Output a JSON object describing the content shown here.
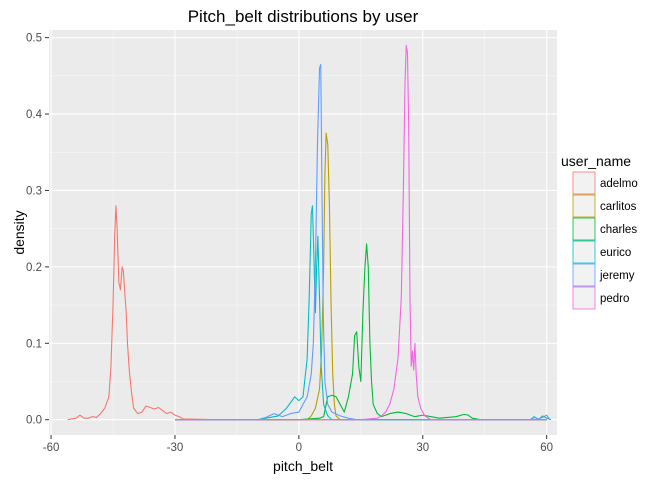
{
  "chart_data": {
    "type": "line",
    "title": "Pitch_belt distributions by user",
    "xlabel": "pitch_belt",
    "ylabel": "density",
    "xlim": [
      -60.5,
      62.5
    ],
    "ylim": [
      -0.02,
      0.51
    ],
    "x_ticks": [
      -60,
      -30,
      0,
      30,
      60
    ],
    "x_tick_labels": [
      "-60",
      "-30",
      "0",
      "30",
      "60"
    ],
    "y_ticks": [
      0.0,
      0.1,
      0.2,
      0.3,
      0.4,
      0.5
    ],
    "y_tick_labels": [
      "0.0",
      "0.1",
      "0.2",
      "0.3",
      "0.4",
      "0.5"
    ],
    "grid": true,
    "legend": {
      "title": "user_name",
      "placement": "right"
    },
    "series": [
      {
        "name": "adelmo",
        "color": "#F8766D",
        "points": [
          [
            -56,
            0
          ],
          [
            -54,
            0.002
          ],
          [
            -53,
            0.006
          ],
          [
            -52,
            0.002
          ],
          [
            -51,
            0.002
          ],
          [
            -50,
            0.004
          ],
          [
            -49,
            0.003
          ],
          [
            -48,
            0.008
          ],
          [
            -47,
            0.015
          ],
          [
            -46,
            0.03
          ],
          [
            -45.5,
            0.07
          ],
          [
            -45,
            0.15
          ],
          [
            -44.6,
            0.24
          ],
          [
            -44.3,
            0.28
          ],
          [
            -44,
            0.25
          ],
          [
            -43.6,
            0.18
          ],
          [
            -43.2,
            0.17
          ],
          [
            -42.8,
            0.2
          ],
          [
            -42.5,
            0.195
          ],
          [
            -42.2,
            0.17
          ],
          [
            -41.8,
            0.14
          ],
          [
            -41.5,
            0.1
          ],
          [
            -41,
            0.06
          ],
          [
            -40.5,
            0.035
          ],
          [
            -40,
            0.015
          ],
          [
            -39,
            0.008
          ],
          [
            -38,
            0.01
          ],
          [
            -37,
            0.018
          ],
          [
            -36,
            0.016
          ],
          [
            -35,
            0.014
          ],
          [
            -34,
            0.016
          ],
          [
            -33,
            0.012
          ],
          [
            -32,
            0.008
          ],
          [
            -31,
            0.01
          ],
          [
            -30,
            0.006
          ],
          [
            -29,
            0.004
          ],
          [
            -28,
            0.001
          ],
          [
            -20,
            0
          ],
          [
            0,
            0
          ],
          [
            30,
            0
          ],
          [
            60,
            0
          ]
        ]
      },
      {
        "name": "carlitos",
        "color": "#B79F00",
        "points": [
          [
            -30,
            0
          ],
          [
            0,
            0
          ],
          [
            2,
            0
          ],
          [
            3,
            0.005
          ],
          [
            4,
            0.015
          ],
          [
            5,
            0.04
          ],
          [
            5.5,
            0.09
          ],
          [
            6,
            0.2
          ],
          [
            6.3,
            0.32
          ],
          [
            6.6,
            0.375
          ],
          [
            7,
            0.36
          ],
          [
            7.4,
            0.28
          ],
          [
            7.8,
            0.15
          ],
          [
            8.2,
            0.06
          ],
          [
            8.6,
            0.02
          ],
          [
            9,
            0.005
          ],
          [
            10,
            0
          ],
          [
            30,
            0
          ],
          [
            60,
            0
          ]
        ]
      },
      {
        "name": "charles",
        "color": "#00BA38",
        "points": [
          [
            -30,
            0
          ],
          [
            -10,
            0
          ],
          [
            0,
            0
          ],
          [
            5,
            0.002
          ],
          [
            6,
            0.004
          ],
          [
            7,
            0.03
          ],
          [
            8,
            0.032
          ],
          [
            9,
            0.03
          ],
          [
            10,
            0.02
          ],
          [
            11,
            0.01
          ],
          [
            12,
            0.03
          ],
          [
            13,
            0.06
          ],
          [
            13.5,
            0.11
          ],
          [
            14,
            0.115
          ],
          [
            14.5,
            0.07
          ],
          [
            15,
            0.05
          ],
          [
            15.5,
            0.14
          ],
          [
            16,
            0.2
          ],
          [
            16.4,
            0.23
          ],
          [
            16.8,
            0.2
          ],
          [
            17.2,
            0.1
          ],
          [
            17.6,
            0.05
          ],
          [
            18,
            0.02
          ],
          [
            19,
            0.008
          ],
          [
            20,
            0.004
          ],
          [
            22,
            0.008
          ],
          [
            24,
            0.01
          ],
          [
            26,
            0.008
          ],
          [
            28,
            0.004
          ],
          [
            30,
            0.006
          ],
          [
            32,
            0.004
          ],
          [
            34,
            0.002
          ],
          [
            36,
            0.003
          ],
          [
            38,
            0.004
          ],
          [
            40,
            0.007
          ],
          [
            41,
            0.006
          ],
          [
            42,
            0.002
          ],
          [
            44,
            0
          ],
          [
            60,
            0
          ]
        ]
      },
      {
        "name": "eurico",
        "color": "#00BFC4",
        "points": [
          [
            -30,
            0
          ],
          [
            -10,
            0
          ],
          [
            -5,
            0.005
          ],
          [
            -3,
            0.015
          ],
          [
            -1,
            0.03
          ],
          [
            0,
            0.025
          ],
          [
            1,
            0.03
          ],
          [
            2,
            0.08
          ],
          [
            2.5,
            0.16
          ],
          [
            3,
            0.27
          ],
          [
            3.3,
            0.28
          ],
          [
            3.6,
            0.22
          ],
          [
            4,
            0.14
          ],
          [
            4.3,
            0.2
          ],
          [
            4.6,
            0.24
          ],
          [
            5,
            0.16
          ],
          [
            5.4,
            0.07
          ],
          [
            6,
            0.02
          ],
          [
            7,
            0.005
          ],
          [
            8,
            0
          ],
          [
            20,
            0
          ],
          [
            56,
            0
          ],
          [
            57,
            0.004
          ],
          [
            58,
            0
          ],
          [
            59,
            0.005
          ],
          [
            60,
            0.002
          ],
          [
            61,
            0
          ]
        ]
      },
      {
        "name": "jeremy",
        "color": "#619CFF",
        "points": [
          [
            -30,
            0
          ],
          [
            -10,
            0
          ],
          [
            -8,
            0.003
          ],
          [
            -6,
            0.008
          ],
          [
            -4,
            0.004
          ],
          [
            -2,
            0.008
          ],
          [
            0,
            0.01
          ],
          [
            2,
            0.03
          ],
          [
            3,
            0.06
          ],
          [
            3.5,
            0.1
          ],
          [
            4,
            0.2
          ],
          [
            4.5,
            0.36
          ],
          [
            5,
            0.46
          ],
          [
            5.3,
            0.465
          ],
          [
            5.6,
            0.3
          ],
          [
            5.9,
            0.14
          ],
          [
            6.3,
            0.05
          ],
          [
            7,
            0.02
          ],
          [
            8,
            0.01
          ],
          [
            10,
            0.005
          ],
          [
            12,
            0.002
          ],
          [
            14,
            0
          ],
          [
            56,
            0
          ],
          [
            57,
            0.003
          ],
          [
            58,
            0.001
          ],
          [
            59,
            0.003
          ],
          [
            60,
            0.006
          ],
          [
            60.5,
            0.002
          ],
          [
            61,
            0
          ]
        ]
      },
      {
        "name": "pedro",
        "color": "#F564E3",
        "points": [
          [
            -30,
            0
          ],
          [
            0,
            0
          ],
          [
            15,
            0
          ],
          [
            19,
            0.002
          ],
          [
            20,
            0.005
          ],
          [
            21,
            0.01
          ],
          [
            22,
            0.02
          ],
          [
            23,
            0.04
          ],
          [
            24,
            0.08
          ],
          [
            24.8,
            0.16
          ],
          [
            25.3,
            0.3
          ],
          [
            25.7,
            0.44
          ],
          [
            26,
            0.49
          ],
          [
            26.3,
            0.48
          ],
          [
            26.6,
            0.38
          ],
          [
            26.9,
            0.16
          ],
          [
            27.2,
            0.07
          ],
          [
            27.5,
            0.09
          ],
          [
            27.8,
            0.065
          ],
          [
            28.1,
            0.1
          ],
          [
            28.4,
            0.06
          ],
          [
            28.8,
            0.03
          ],
          [
            29.5,
            0.015
          ],
          [
            30.5,
            0.005
          ],
          [
            32,
            0
          ],
          [
            60,
            0
          ]
        ]
      }
    ]
  }
}
